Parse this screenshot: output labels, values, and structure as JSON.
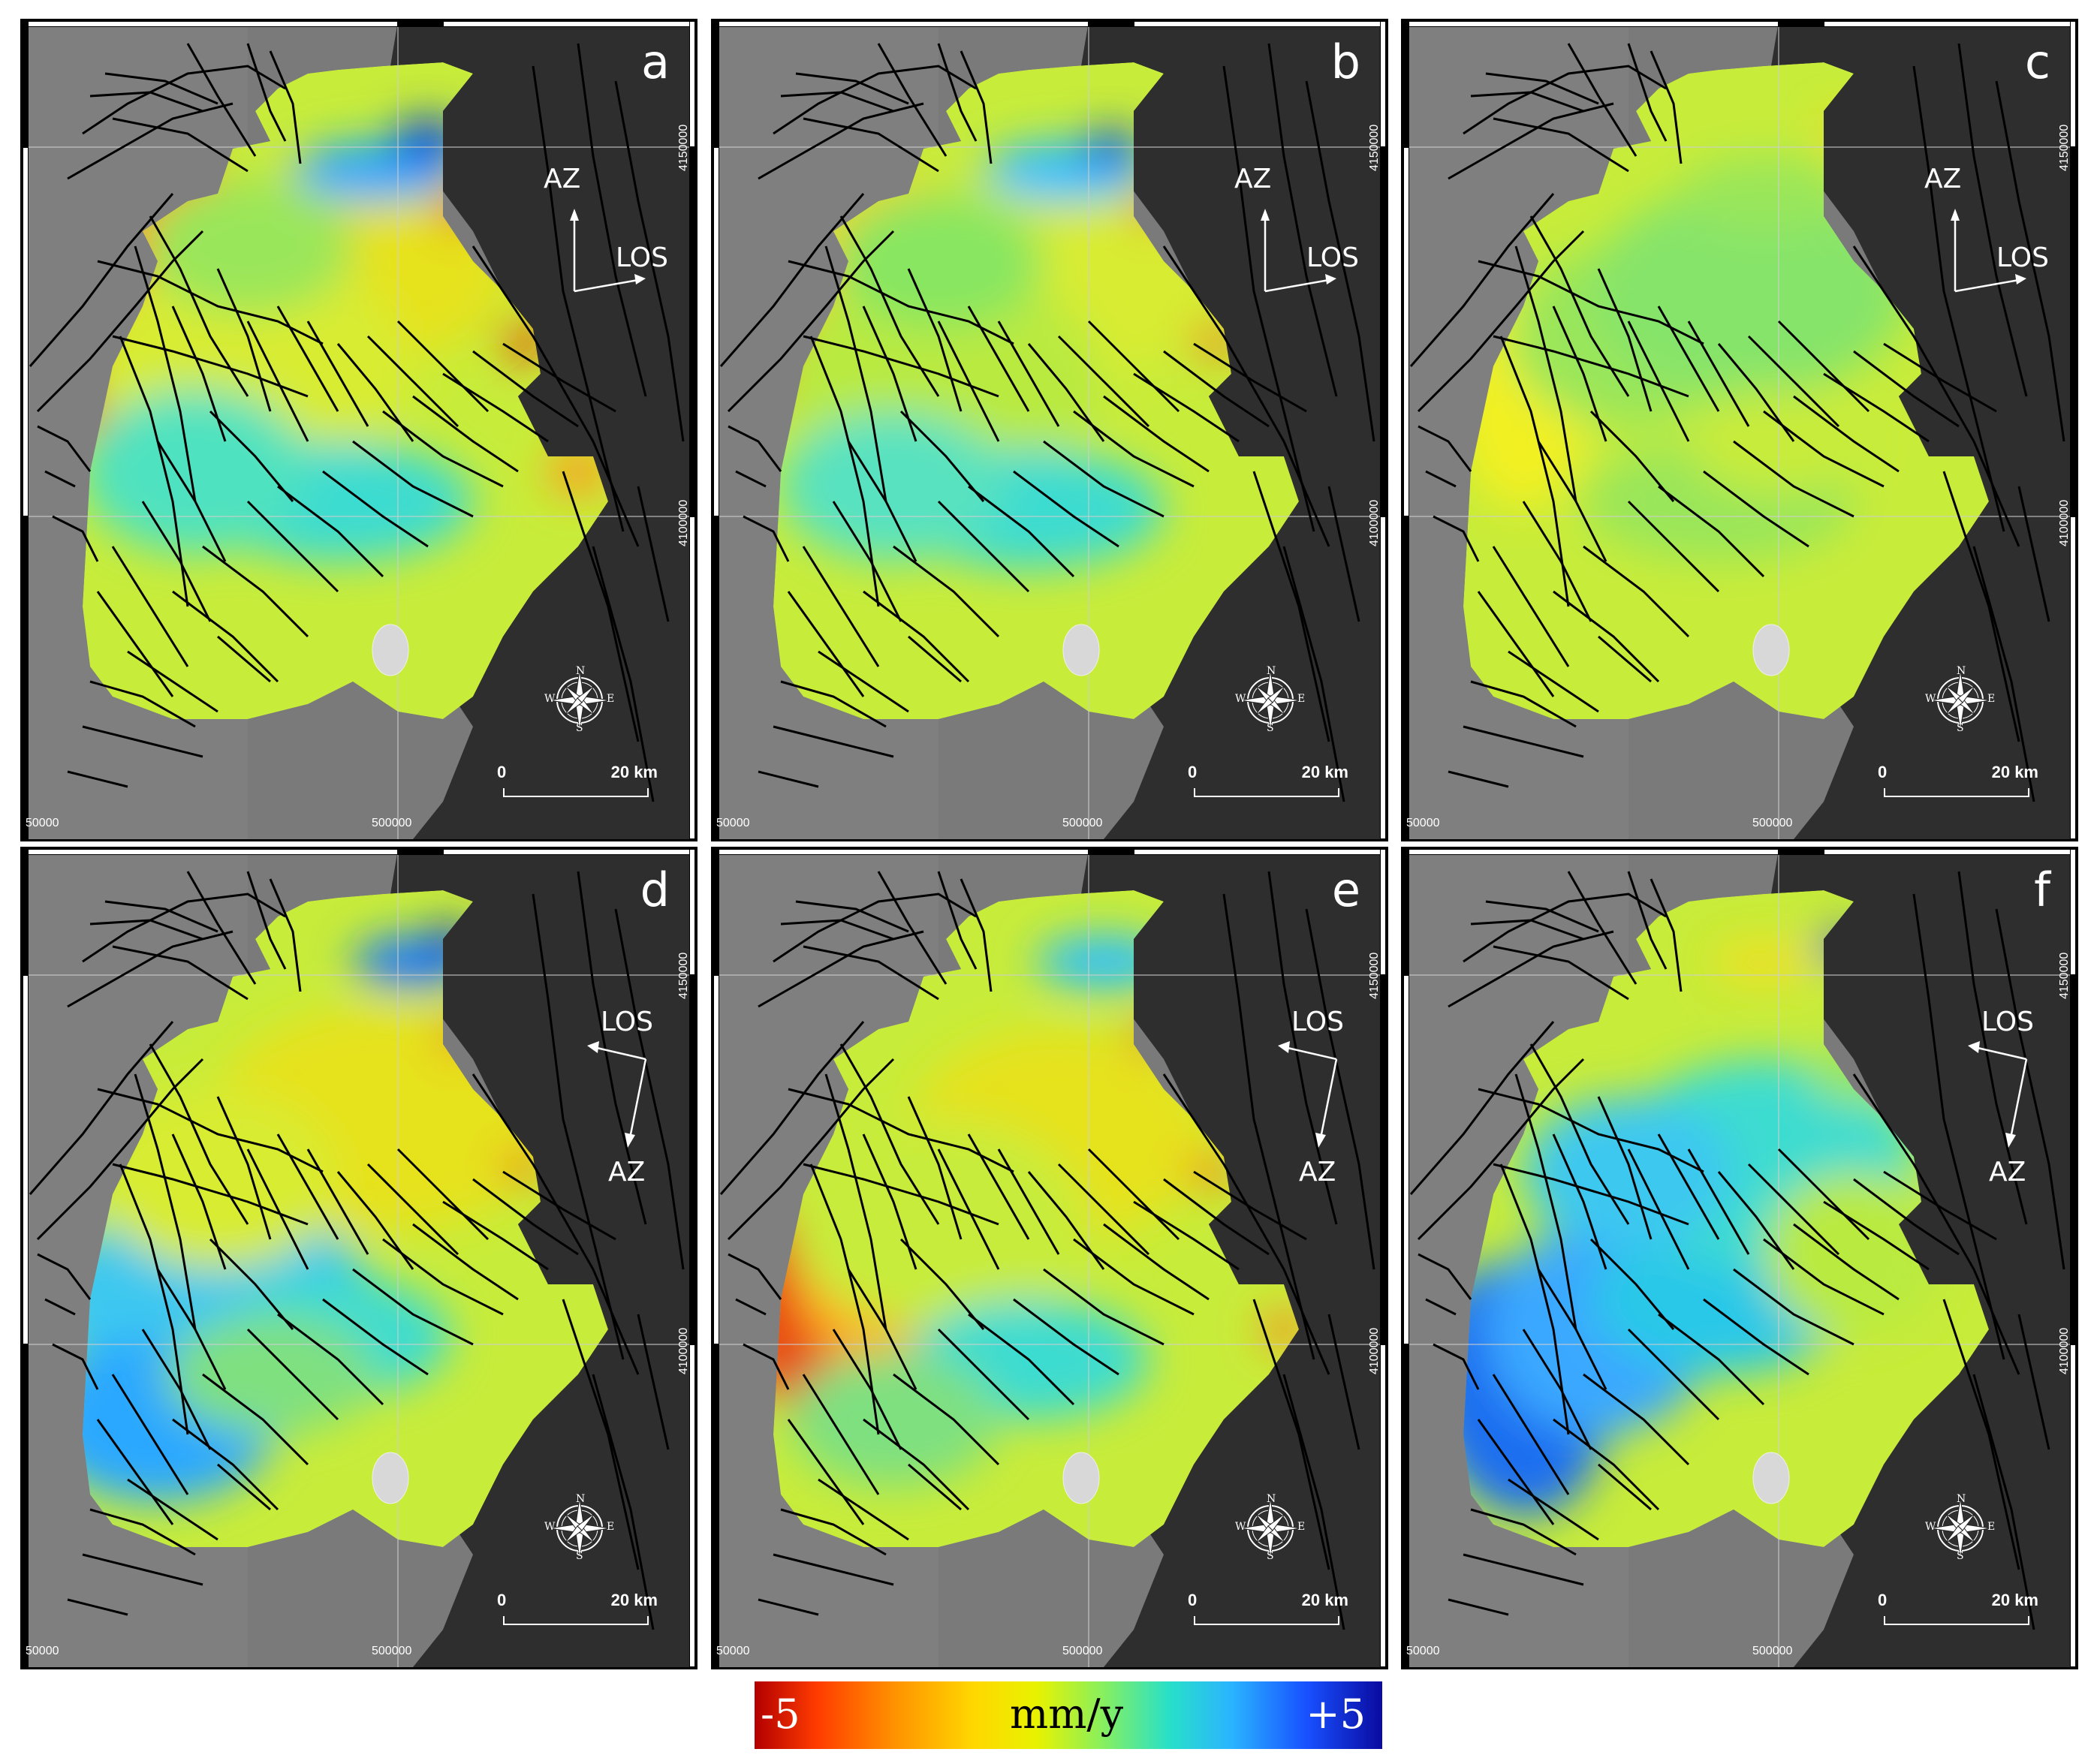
{
  "figure": {
    "panels": [
      {
        "letter": "a",
        "arrows": "AZ-LOS",
        "label_top": "AZ",
        "label_bottom": "LOS"
      },
      {
        "letter": "b",
        "arrows": "AZ-LOS",
        "label_top": "AZ",
        "label_bottom": "LOS"
      },
      {
        "letter": "c",
        "arrows": "AZ-LOS",
        "label_top": "AZ",
        "label_bottom": "LOS"
      },
      {
        "letter": "d",
        "arrows": "LOS-AZ",
        "label_top": "LOS",
        "label_bottom": "AZ"
      },
      {
        "letter": "e",
        "arrows": "LOS-AZ",
        "label_top": "LOS",
        "label_bottom": "AZ"
      },
      {
        "letter": "f",
        "arrows": "LOS-AZ",
        "label_top": "LOS",
        "label_bottom": "AZ"
      }
    ],
    "grid_labels": {
      "northing_top": "4150000",
      "northing_mid": "4100000",
      "easting_left": "50000",
      "easting_mid": "500000"
    },
    "scale": {
      "zero": "0",
      "end": "20 km"
    },
    "compass": {
      "n": "N",
      "s": "S",
      "e": "E",
      "w": "W"
    },
    "colorbar": {
      "min_label": "-5",
      "unit_label": "mm/y",
      "max_label": "+5",
      "colors": [
        "#b30000",
        "#ff9000",
        "#e8f200",
        "#28e0c8",
        "#1850ff",
        "#0a0aa0"
      ]
    }
  }
}
